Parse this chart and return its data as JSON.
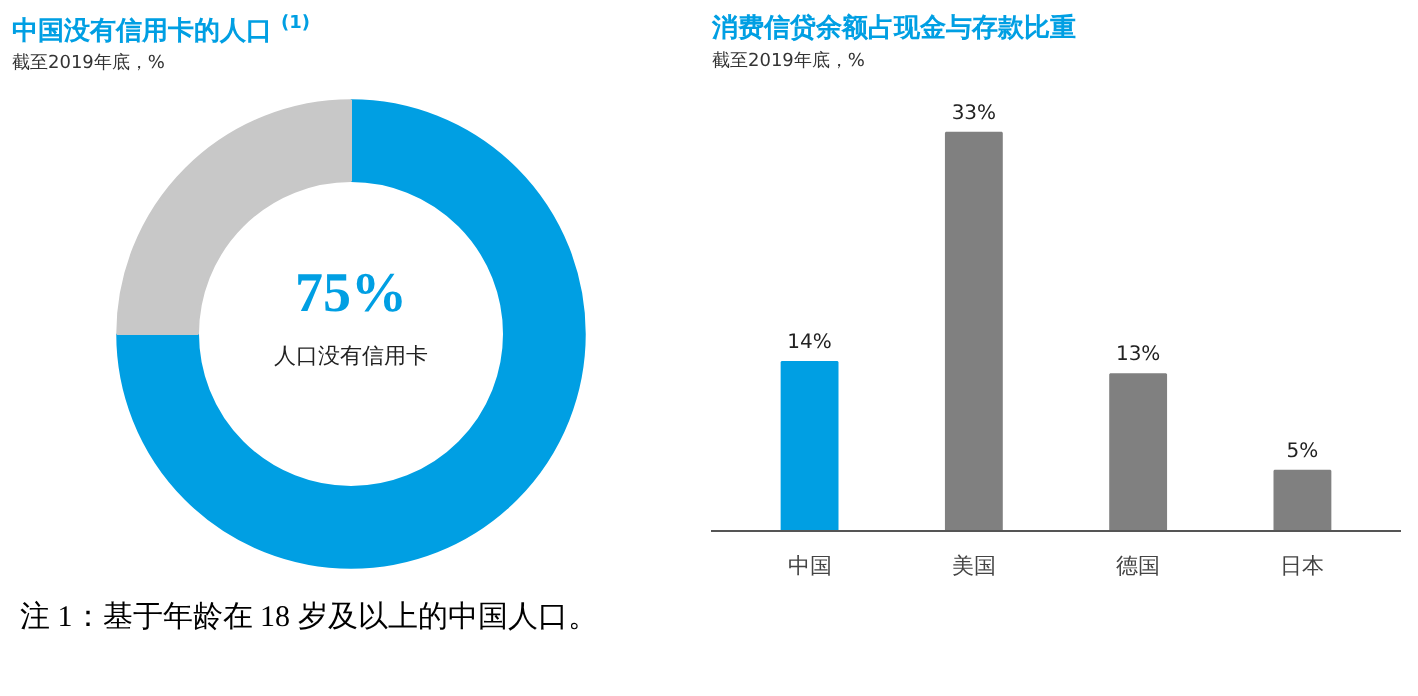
{
  "chart_data": [
    {
      "type": "donut",
      "title": "中国没有信用卡的人口 $^{(1)}$",
      "subtitle": "截至2019年底，%",
      "categories": [
        null,
        null
      ],
      "values": [
        75,
        25
      ],
      "colors": [
        "#009fe3",
        "#c8c8c8"
      ],
      "annotations": [
        "75%",
        "人口没有信用卡",
        "注 1：基于年龄在 18 岁及以上的中国人口。"
      ]
    },
    {
      "type": "bar",
      "title": "消费信贷余额占现金与存款比重",
      "subtitle": "截至2019年底，%",
      "categories": [
        "中国",
        "美国",
        "德国",
        "日本"
      ],
      "values": [
        14,
        33,
        13,
        5
      ],
      "colors": [
        "#009fe3",
        "#808080",
        "#808080",
        "#808080"
      ],
      "value_labels": [
        "14%",
        "33%",
        "13%",
        "5%"
      ]
    }
  ]
}
